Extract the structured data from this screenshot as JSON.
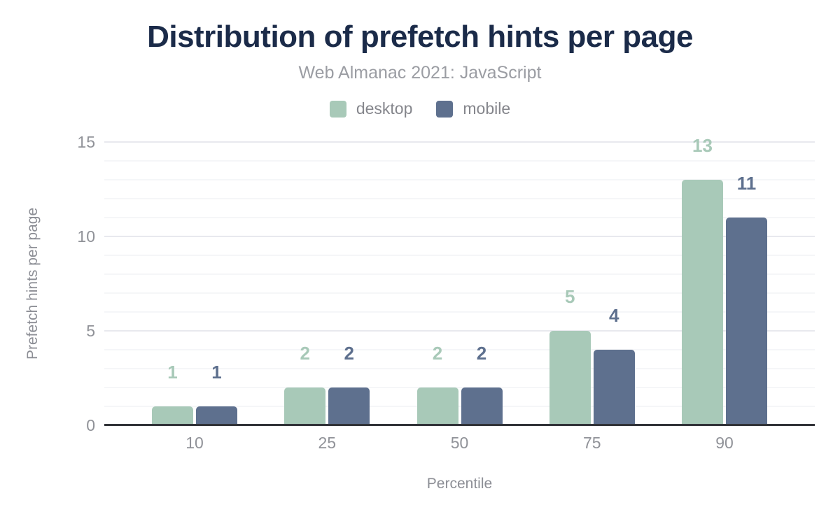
{
  "chart_data": {
    "type": "bar",
    "title": "Distribution of prefetch hints per page",
    "subtitle": "Web Almanac 2021: JavaScript",
    "xlabel": "Percentile",
    "ylabel": "Prefetch hints per page",
    "categories": [
      "10",
      "25",
      "50",
      "75",
      "90"
    ],
    "series": [
      {
        "name": "desktop",
        "color": "#a8c9b8",
        "values": [
          1,
          2,
          2,
          5,
          13
        ]
      },
      {
        "name": "mobile",
        "color": "#5e708e",
        "values": [
          1,
          2,
          2,
          4,
          11
        ]
      }
    ],
    "ylim": [
      0,
      15
    ],
    "y_ticks": [
      0,
      5,
      10,
      15
    ],
    "grid": {
      "horizontal": true,
      "minor_step": 1,
      "major_step": 5
    },
    "legend_position": "top",
    "value_labels": true
  },
  "colors": {
    "background": "#ffffff",
    "title": "#1b2b49",
    "subtitle": "#9b9da3",
    "legend_text": "#85868c",
    "axis_text": "#909298",
    "axis_title_text": "#8c8e95",
    "axis_line": "#313338",
    "grid_major": "#e8e9ee",
    "grid_minor": "#f5f6f8",
    "desktop": "#a8c9b8",
    "mobile": "#5e708e"
  }
}
